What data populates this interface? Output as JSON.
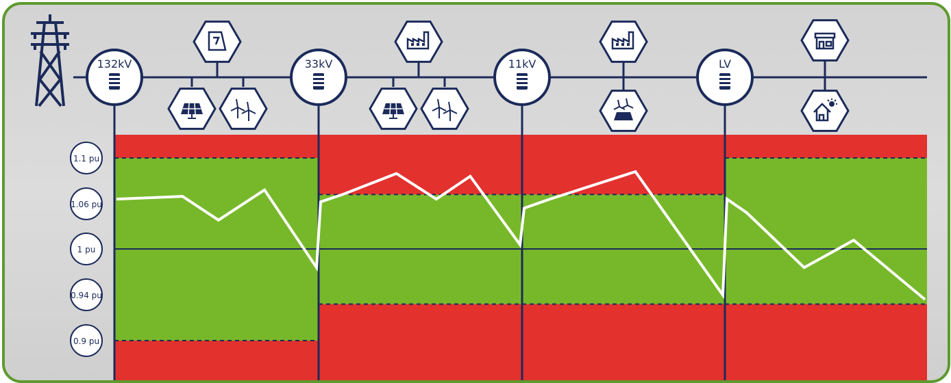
{
  "voltage_levels": [
    {
      "label": "132kV"
    },
    {
      "label": "33kV"
    },
    {
      "label": "11kV"
    },
    {
      "label": "LV"
    }
  ],
  "pu_ticks": [
    "1.1 pu",
    "1.06 pu",
    "1 pu",
    "0.94 pu",
    "0.9 pu"
  ],
  "connected_assets": [
    {
      "segment": "132kV-33kV",
      "icons": [
        "power-plant-icon",
        "solar-panel-icon",
        "wind-turbine-icon"
      ]
    },
    {
      "segment": "33kV-11kV",
      "icons": [
        "factory-icon",
        "solar-panel-icon",
        "wind-turbine-icon"
      ]
    },
    {
      "segment": "11kV-LV",
      "icons": [
        "factory-icon",
        "wind-solar-icon"
      ]
    },
    {
      "segment": "LV",
      "icons": [
        "shop-icon",
        "solar-home-icon"
      ]
    }
  ],
  "chart_data": {
    "type": "line",
    "y_ticks": [
      0.9,
      0.94,
      1.0,
      1.06,
      1.1
    ],
    "segments": [
      {
        "name": "132kV",
        "band_upper": 1.1,
        "band_lower": 0.9,
        "points": [
          [
            0,
            1.055
          ],
          [
            0.33,
            1.058
          ],
          [
            0.51,
            1.032
          ],
          [
            0.74,
            1.065
          ],
          [
            1.0,
            0.98
          ]
        ]
      },
      {
        "name": "33kV",
        "band_upper": 1.06,
        "band_lower": 0.94,
        "points": [
          [
            0,
            1.052
          ],
          [
            0.11,
            1.06
          ],
          [
            0.38,
            1.083
          ],
          [
            0.58,
            1.055
          ],
          [
            0.75,
            1.08
          ],
          [
            1.0,
            1.005
          ]
        ]
      },
      {
        "name": "11kV",
        "band_upper": 1.06,
        "band_lower": 0.94,
        "points": [
          [
            0,
            1.045
          ],
          [
            0.13,
            1.055
          ],
          [
            0.56,
            1.085
          ],
          [
            1.0,
            0.95
          ]
        ]
      },
      {
        "name": "LV",
        "band_upper": 1.1,
        "band_lower": 0.94,
        "points": [
          [
            0,
            1.055
          ],
          [
            0.1,
            1.04
          ],
          [
            0.39,
            0.98
          ],
          [
            0.64,
            1.01
          ],
          [
            1.0,
            0.945
          ]
        ]
      }
    ],
    "colors": {
      "acceptable": "#77b82a",
      "out_of_limits": "#e3312e",
      "voltage_line": "#ffffff",
      "network": "#1b2a5a"
    }
  }
}
